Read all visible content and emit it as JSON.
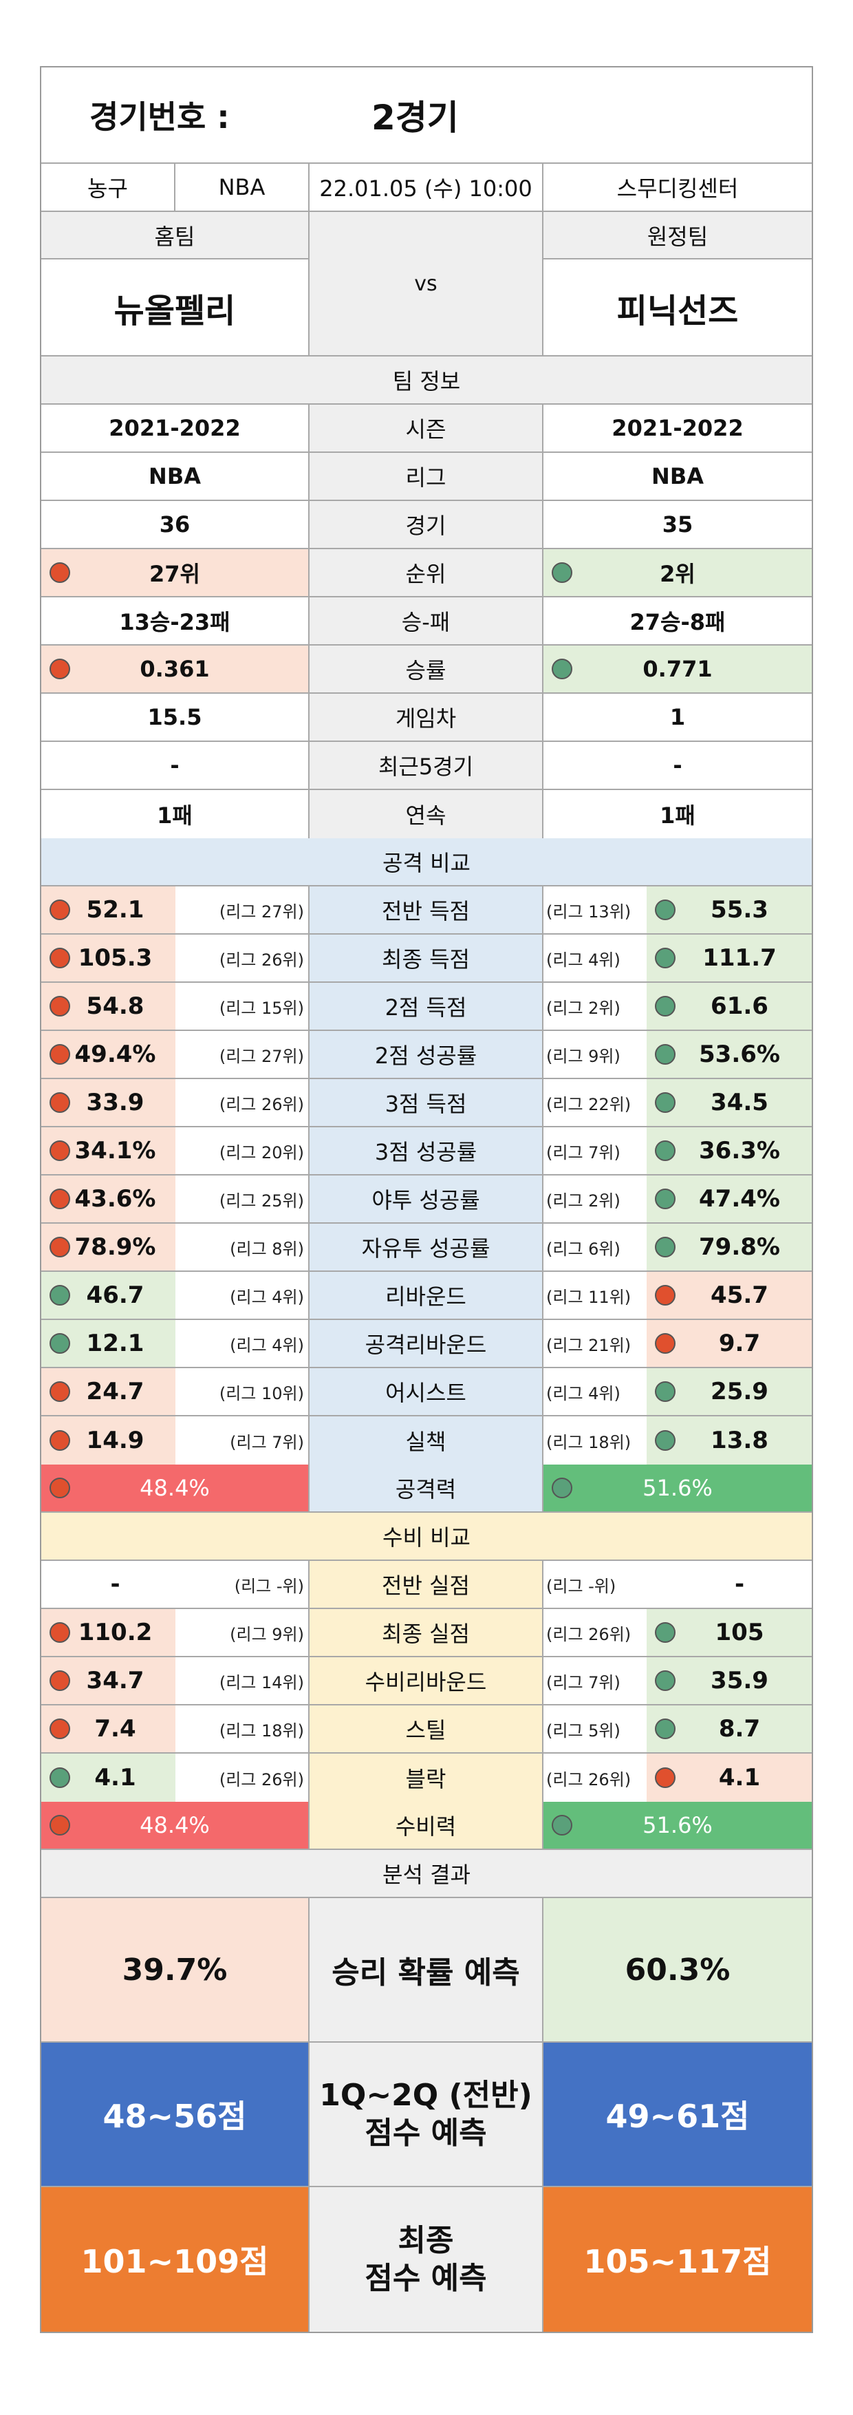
{
  "header": {
    "game_label": "경기번호 :",
    "game_value": "2경기"
  },
  "info": {
    "sport": "농구",
    "league": "NBA",
    "datetime": "22.01.05 (수) 10:00",
    "venue": "스무디킹센터"
  },
  "teams": {
    "home_label": "홈팀",
    "away_label": "원정팀",
    "vs": "vs",
    "home_name": "뉴올펠리",
    "away_name": "피닉선즈"
  },
  "team_info": {
    "title": "팀 정보",
    "rows": [
      {
        "home": "2021-2022",
        "label": "시즌",
        "away": "2021-2022"
      },
      {
        "home": "NBA",
        "label": "리그",
        "away": "NBA"
      },
      {
        "home": "36",
        "label": "경기",
        "away": "35"
      },
      {
        "home": "27위",
        "label": "순위",
        "away": "2위"
      },
      {
        "home": "13승-23패",
        "label": "승-패",
        "away": "27승-8패"
      },
      {
        "home": "0.361",
        "label": "승률",
        "away": "0.771"
      },
      {
        "home": "15.5",
        "label": "게임차",
        "away": "1"
      },
      {
        "home": "-",
        "label": "최근5경기",
        "away": "-"
      },
      {
        "home": "1패",
        "label": "연속",
        "away": "1패"
      }
    ]
  },
  "attack": {
    "title": "공격 비교",
    "rows": [
      {
        "home": "52.1",
        "home_rank": "(리그 27위)",
        "label": "전반 득점",
        "away_rank": "(리그 13위)",
        "away": "55.3"
      },
      {
        "home": "105.3",
        "home_rank": "(리그 26위)",
        "label": "최종 득점",
        "away_rank": "(리그 4위)",
        "away": "111.7"
      },
      {
        "home": "54.8",
        "home_rank": "(리그 15위)",
        "label": "2점 득점",
        "away_rank": "(리그 2위)",
        "away": "61.6"
      },
      {
        "home": "49.4%",
        "home_rank": "(리그 27위)",
        "label": "2점 성공률",
        "away_rank": "(리그 9위)",
        "away": "53.6%"
      },
      {
        "home": "33.9",
        "home_rank": "(리그 26위)",
        "label": "3점 득점",
        "away_rank": "(리그 22위)",
        "away": "34.5"
      },
      {
        "home": "34.1%",
        "home_rank": "(리그 20위)",
        "label": "3점 성공률",
        "away_rank": "(리그 7위)",
        "away": "36.3%"
      },
      {
        "home": "43.6%",
        "home_rank": "(리그 25위)",
        "label": "야투 성공률",
        "away_rank": "(리그 2위)",
        "away": "47.4%"
      },
      {
        "home": "78.9%",
        "home_rank": "(리그 8위)",
        "label": "자유투 성공률",
        "away_rank": "(리그 6위)",
        "away": "79.8%"
      },
      {
        "home": "46.7",
        "home_rank": "(리그 4위)",
        "label": "리바운드",
        "away_rank": "(리그 11위)",
        "away": "45.7"
      },
      {
        "home": "12.1",
        "home_rank": "(리그 4위)",
        "label": "공격리바운드",
        "away_rank": "(리그 21위)",
        "away": "9.7"
      },
      {
        "home": "24.7",
        "home_rank": "(리그 10위)",
        "label": "어시스트",
        "away_rank": "(리그 4위)",
        "away": "25.9"
      },
      {
        "home": "14.9",
        "home_rank": "(리그 7위)",
        "label": "실책",
        "away_rank": "(리그 18위)",
        "away": "13.8"
      }
    ],
    "power": {
      "home": "48.4%",
      "label": "공격력",
      "away": "51.6%"
    }
  },
  "defense": {
    "title": "수비 비교",
    "rows": [
      {
        "home": "-",
        "home_rank": "(리그 -위)",
        "label": "전반 실점",
        "away_rank": "(리그 -위)",
        "away": "-"
      },
      {
        "home": "110.2",
        "home_rank": "(리그 9위)",
        "label": "최종 실점",
        "away_rank": "(리그 26위)",
        "away": "105"
      },
      {
        "home": "34.7",
        "home_rank": "(리그 14위)",
        "label": "수비리바운드",
        "away_rank": "(리그 7위)",
        "away": "35.9"
      },
      {
        "home": "7.4",
        "home_rank": "(리그 18위)",
        "label": "스틸",
        "away_rank": "(리그 5위)",
        "away": "8.7"
      },
      {
        "home": "4.1",
        "home_rank": "(리그 26위)",
        "label": "블락",
        "away_rank": "(리그 26위)",
        "away": "4.1"
      }
    ],
    "power": {
      "home": "48.4%",
      "label": "수비력",
      "away": "51.6%"
    }
  },
  "analysis": {
    "title": "분석 결과",
    "win": {
      "home": "39.7%",
      "label": "승리 확률 예측",
      "away": "60.3%"
    },
    "half": {
      "home": "48~56점",
      "label_1": "1Q~2Q (전반)",
      "label_2": "점수 예측",
      "away": "49~61점"
    },
    "final": {
      "home": "101~109점",
      "label_1": "최종",
      "label_2": "점수 예측",
      "away": "105~117점"
    }
  },
  "colors": {
    "dot_red": "#e0502e",
    "dot_green": "#5aa07a",
    "lose_bg": "#fbe2d6",
    "win_bg": "#e2efda",
    "power_lose": "#f4696b",
    "power_win": "#63be7b",
    "half_bg": "#4472c4",
    "final_bg": "#ed7d31"
  }
}
